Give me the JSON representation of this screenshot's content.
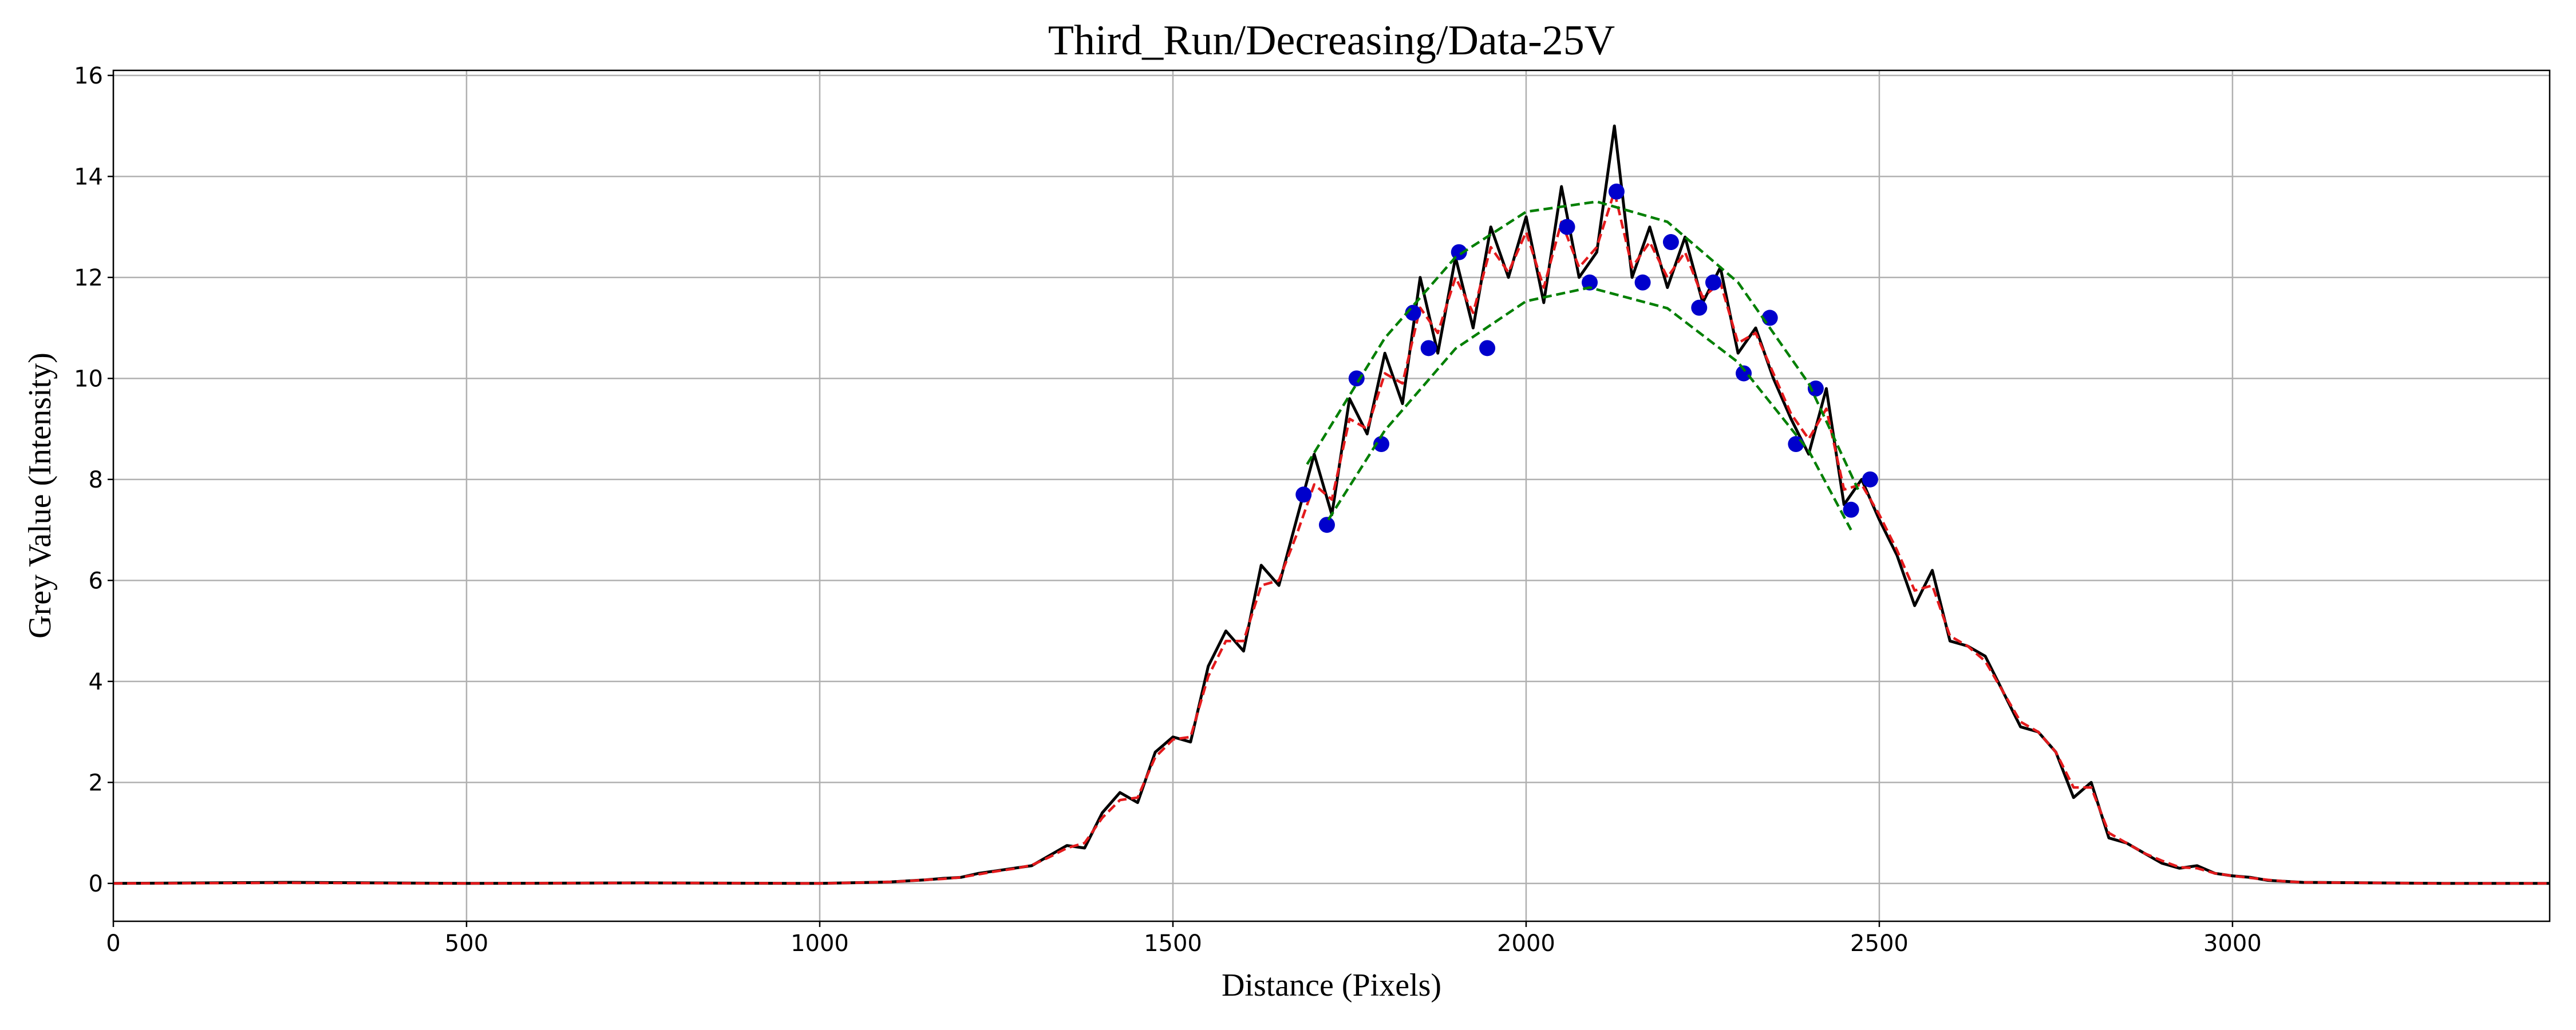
{
  "chart_data": {
    "type": "line",
    "title": "Third_Run/Decreasing/Data-25V",
    "xlabel": "Distance (Pixels)",
    "ylabel": "Grey Value (Intensity)",
    "xlim": [
      0,
      3449
    ],
    "ylim": [
      -0.75,
      16.1
    ],
    "xticks": [
      0,
      500,
      1000,
      1500,
      2000,
      2500,
      3000
    ],
    "yticks": [
      0,
      2,
      4,
      6,
      8,
      10,
      12,
      14,
      16
    ],
    "grid": true,
    "x": [
      0,
      250,
      500,
      750,
      1000,
      1075,
      1100,
      1125,
      1150,
      1175,
      1200,
      1225,
      1250,
      1275,
      1300,
      1325,
      1350,
      1375,
      1400,
      1425,
      1450,
      1475,
      1500,
      1525,
      1550,
      1575,
      1600,
      1625,
      1650,
      1675,
      1700,
      1725,
      1750,
      1775,
      1800,
      1825,
      1850,
      1875,
      1900,
      1925,
      1950,
      1975,
      2000,
      2025,
      2050,
      2075,
      2100,
      2125,
      2150,
      2175,
      2200,
      2225,
      2250,
      2275,
      2300,
      2325,
      2350,
      2375,
      2400,
      2425,
      2450,
      2475,
      2500,
      2525,
      2550,
      2575,
      2600,
      2625,
      2650,
      2675,
      2700,
      2725,
      2750,
      2775,
      2800,
      2825,
      2850,
      2875,
      2900,
      2925,
      2950,
      2975,
      3000,
      3025,
      3050,
      3075,
      3100,
      3200,
      3300,
      3449
    ],
    "series": [
      {
        "color": "#000000",
        "dashed": false,
        "values": [
          0,
          0.02,
          0,
          0.01,
          0,
          0.02,
          0.03,
          0.05,
          0.07,
          0.1,
          0.12,
          0.2,
          0.25,
          0.3,
          0.35,
          0.55,
          0.75,
          0.7,
          1.4,
          1.8,
          1.6,
          2.6,
          2.9,
          2.8,
          4.3,
          5.0,
          4.6,
          6.3,
          5.9,
          7.2,
          8.5,
          7.3,
          9.6,
          8.9,
          10.5,
          9.5,
          12.0,
          10.5,
          12.4,
          11.0,
          13.0,
          12.0,
          13.2,
          11.5,
          13.8,
          12.0,
          12.5,
          15.0,
          12.0,
          13.0,
          11.8,
          12.8,
          11.5,
          12.2,
          10.5,
          11.0,
          10.0,
          9.2,
          8.5,
          9.8,
          7.5,
          8.0,
          7.2,
          6.5,
          5.5,
          6.2,
          4.8,
          4.7,
          4.5,
          3.8,
          3.1,
          3.0,
          2.6,
          1.7,
          2.0,
          0.9,
          0.8,
          0.6,
          0.4,
          0.3,
          0.35,
          0.2,
          0.15,
          0.12,
          0.06,
          0.04,
          0.02,
          0.01,
          0,
          0
        ]
      },
      {
        "color": "#e31a1c",
        "dashed": true,
        "values": [
          0,
          0.01,
          0,
          0.01,
          0,
          0.02,
          0.03,
          0.05,
          0.07,
          0.09,
          0.12,
          0.18,
          0.24,
          0.29,
          0.36,
          0.52,
          0.7,
          0.8,
          1.3,
          1.65,
          1.7,
          2.5,
          2.85,
          2.9,
          4.1,
          4.8,
          4.8,
          5.9,
          6.0,
          6.9,
          7.9,
          7.6,
          9.2,
          9.0,
          10.1,
          9.9,
          11.4,
          10.9,
          12.0,
          11.3,
          12.6,
          12.1,
          12.9,
          11.8,
          13.1,
          12.2,
          12.6,
          13.7,
          12.2,
          12.7,
          12.0,
          12.5,
          11.6,
          11.9,
          10.7,
          10.9,
          10.1,
          9.3,
          8.8,
          9.4,
          7.8,
          7.9,
          7.3,
          6.6,
          5.8,
          5.9,
          4.9,
          4.7,
          4.4,
          3.8,
          3.2,
          3.0,
          2.6,
          1.9,
          1.9,
          1.0,
          0.8,
          0.6,
          0.45,
          0.32,
          0.3,
          0.2,
          0.15,
          0.11,
          0.07,
          0.04,
          0.02,
          0.01,
          0,
          0
        ]
      },
      {
        "color": "#0000cc",
        "mode": "markers",
        "x": [
          1685,
          1718,
          1760,
          1795,
          1840,
          1862,
          1905,
          1945,
          2058,
          2090,
          2128,
          2165,
          2205,
          2245,
          2265,
          2308,
          2345,
          2382,
          2410,
          2460,
          2487
        ],
        "values": [
          7.7,
          7.1,
          10.0,
          8.7,
          11.3,
          10.6,
          12.5,
          10.6,
          13.0,
          11.9,
          13.7,
          11.9,
          12.7,
          11.4,
          11.9,
          10.1,
          11.2,
          8.7,
          9.8,
          7.4,
          8.0
        ]
      },
      {
        "color": "#007f00",
        "dashed": true,
        "x": [
          1690,
          1800,
          1900,
          2000,
          2100,
          2200,
          2300,
          2400,
          2470
        ],
        "values": [
          8.3,
          10.8,
          12.4,
          13.3,
          13.5,
          13.1,
          11.9,
          9.9,
          7.8
        ]
      },
      {
        "color": "#007f00",
        "dashed": true,
        "x": [
          1720,
          1800,
          1900,
          2000,
          2090,
          2200,
          2300,
          2400,
          2460
        ],
        "values": [
          7.2,
          8.97,
          10.59,
          11.53,
          11.8,
          11.39,
          10.32,
          8.57,
          7.0
        ]
      }
    ]
  }
}
